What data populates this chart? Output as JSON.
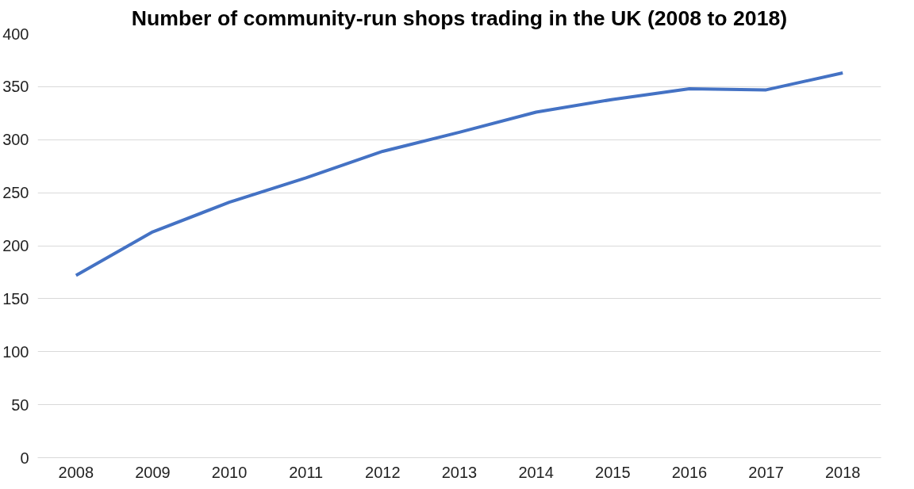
{
  "chart_data": {
    "type": "line",
    "title": "Number of community-run shops trading in the UK (2008 to 2018)",
    "categories": [
      "2008",
      "2009",
      "2010",
      "2011",
      "2012",
      "2013",
      "2014",
      "2015",
      "2016",
      "2017",
      "2018"
    ],
    "series": [
      {
        "color": "#4472c4",
        "values": [
          172,
          213,
          241,
          264,
          289,
          307,
          326,
          338,
          348,
          347,
          363
        ]
      }
    ],
    "ylim": [
      0,
      400
    ],
    "yticks": [
      0,
      50,
      100,
      150,
      200,
      250,
      300,
      350,
      400
    ],
    "grid": "y",
    "marker": "none",
    "line_style": "solid"
  }
}
